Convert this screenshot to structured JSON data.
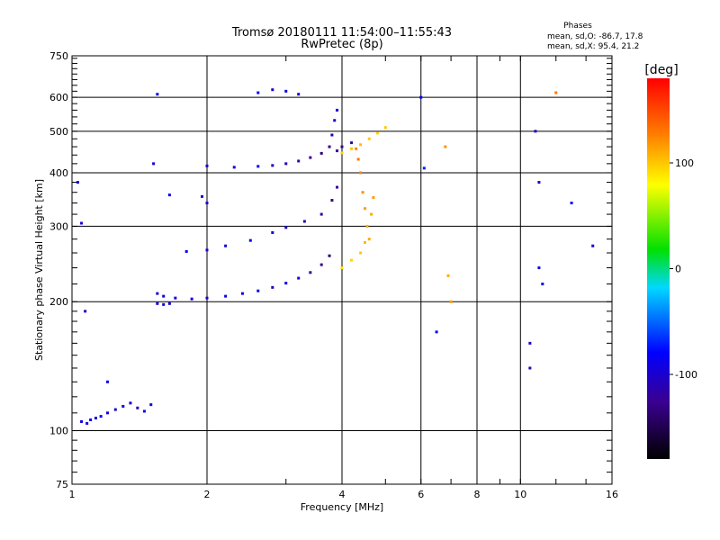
{
  "chart_data": {
    "type": "scatter",
    "title": "Tromsø 20180111 11:54:00–11:55:43",
    "subtitle": "RwPretec (8p)",
    "stats_title": "Phases",
    "stats_line1": "mean, sd,O: -86.7, 17.8",
    "stats_line2": "mean, sd,X:  95.4, 21.2",
    "xlabel": "Frequency [MHz]",
    "ylabel": "Stationary phase Virtual Height [km]",
    "xscale": "log",
    "yscale": "log",
    "xlim": [
      1,
      16
    ],
    "ylim": [
      75,
      750
    ],
    "xticks": [
      1,
      2,
      4,
      6,
      8,
      10,
      16
    ],
    "yticks": [
      75,
      100,
      200,
      300,
      400,
      500,
      600,
      750
    ],
    "xgrid": [
      2,
      4,
      6,
      8,
      10
    ],
    "ygrid": [
      100,
      200,
      300,
      400,
      500,
      600
    ],
    "colorbar": {
      "label": "[deg]",
      "range": [
        -180,
        180
      ],
      "ticks": [
        100,
        0,
        -100
      ]
    },
    "series": [
      {
        "points": [
          [
            1.05,
            105,
            -90
          ],
          [
            1.08,
            104,
            -95
          ],
          [
            1.1,
            106,
            -85
          ],
          [
            1.13,
            107,
            -100
          ],
          [
            1.16,
            108,
            -80
          ],
          [
            1.2,
            110,
            -95
          ],
          [
            1.25,
            112,
            -105
          ],
          [
            1.3,
            114,
            -85
          ],
          [
            1.35,
            116,
            -95
          ],
          [
            1.4,
            113,
            -110
          ],
          [
            1.45,
            111,
            -85
          ],
          [
            1.5,
            115,
            -100
          ],
          [
            1.55,
            209,
            -95
          ],
          [
            1.6,
            206,
            -90
          ],
          [
            1.7,
            204,
            -85
          ],
          [
            1.85,
            203,
            -95
          ],
          [
            2.0,
            204,
            -100
          ],
          [
            2.2,
            206,
            -90
          ],
          [
            2.4,
            209,
            -85
          ],
          [
            2.6,
            212,
            -95
          ],
          [
            2.8,
            216,
            -105
          ],
          [
            3.0,
            221,
            -90
          ],
          [
            3.2,
            227,
            -95
          ],
          [
            3.4,
            234,
            -120
          ],
          [
            3.6,
            244,
            -130
          ],
          [
            3.75,
            256,
            -140
          ],
          [
            1.55,
            198,
            -95
          ],
          [
            1.6,
            197,
            -100
          ],
          [
            1.65,
            198,
            -90
          ],
          [
            1.65,
            355,
            -85
          ],
          [
            1.95,
            352,
            -95
          ],
          [
            2.0,
            340,
            -90
          ],
          [
            1.8,
            262,
            -85
          ],
          [
            2.0,
            264,
            -95
          ],
          [
            2.2,
            270,
            -90
          ],
          [
            2.5,
            278,
            -85
          ],
          [
            2.8,
            290,
            -95
          ],
          [
            3.0,
            298,
            -100
          ],
          [
            3.3,
            308,
            -110
          ],
          [
            3.6,
            320,
            -120
          ],
          [
            3.8,
            345,
            -130
          ],
          [
            3.9,
            370,
            -120
          ],
          [
            2.0,
            415,
            -95
          ],
          [
            2.3,
            412,
            -90
          ],
          [
            2.6,
            414,
            -85
          ],
          [
            2.8,
            416,
            -100
          ],
          [
            3.0,
            420,
            -110
          ],
          [
            3.2,
            426,
            -120
          ],
          [
            3.4,
            434,
            -130
          ],
          [
            3.6,
            444,
            -140
          ],
          [
            3.75,
            460,
            -130
          ],
          [
            3.8,
            490,
            -110
          ],
          [
            3.85,
            530,
            -100
          ],
          [
            3.9,
            560,
            -95
          ],
          [
            2.6,
            615,
            -85
          ],
          [
            2.8,
            625,
            -95
          ],
          [
            3.0,
            620,
            -90
          ],
          [
            3.2,
            610,
            -100
          ],
          [
            3.9,
            450,
            -120
          ],
          [
            4.0,
            460,
            -130
          ],
          [
            4.2,
            470,
            -110
          ],
          [
            4.0,
            445,
            95
          ],
          [
            4.2,
            455,
            100
          ],
          [
            4.4,
            465,
            105
          ],
          [
            4.6,
            480,
            100
          ],
          [
            4.8,
            495,
            95
          ],
          [
            5.0,
            510,
            100
          ],
          [
            4.0,
            240,
            90
          ],
          [
            4.2,
            250,
            95
          ],
          [
            4.4,
            260,
            100
          ],
          [
            4.5,
            275,
            105
          ],
          [
            4.55,
            300,
            110
          ],
          [
            4.5,
            330,
            115
          ],
          [
            4.45,
            360,
            120
          ],
          [
            4.4,
            400,
            125
          ],
          [
            4.35,
            430,
            130
          ],
          [
            4.3,
            455,
            125
          ],
          [
            4.6,
            280,
            110
          ],
          [
            4.65,
            320,
            110
          ],
          [
            4.7,
            350,
            115
          ],
          [
            1.03,
            380,
            -90
          ],
          [
            1.05,
            305,
            -95
          ],
          [
            1.07,
            190,
            -100
          ],
          [
            1.2,
            130,
            -85
          ],
          [
            1.52,
            420,
            -95
          ],
          [
            1.55,
            610,
            -90
          ],
          [
            6.0,
            600,
            -80
          ],
          [
            6.1,
            410,
            -70
          ],
          [
            6.5,
            170,
            -90
          ],
          [
            6.8,
            460,
            120
          ],
          [
            6.9,
            230,
            110
          ],
          [
            7.0,
            200,
            115
          ],
          [
            10.8,
            500,
            -110
          ],
          [
            11.0,
            380,
            -100
          ],
          [
            11.0,
            240,
            -95
          ],
          [
            11.2,
            220,
            -90
          ],
          [
            10.5,
            160,
            -105
          ],
          [
            10.5,
            140,
            -110
          ],
          [
            12.0,
            615,
            130
          ],
          [
            13.0,
            340,
            -80
          ],
          [
            14.5,
            270,
            -90
          ]
        ]
      }
    ]
  }
}
